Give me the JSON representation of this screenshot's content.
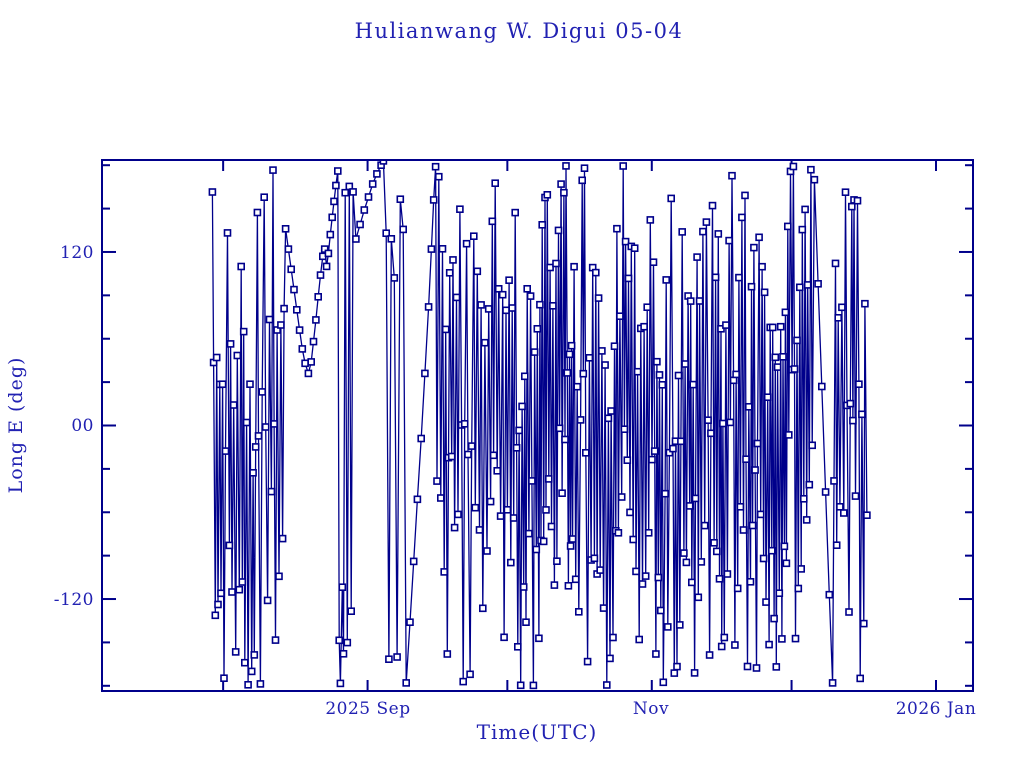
{
  "page": {
    "title": "Hulianwang W. Digui 05-04"
  },
  "chart_data": {
    "type": "scatter-line",
    "title": "Hulianwang W. Digui 05-04",
    "xlabel": "Time(UTC)",
    "ylabel": "Long E (deg)",
    "line_color": "#00008B",
    "text_color": "#2121b2",
    "background": "#ffffff",
    "marker": "open-square",
    "grid": false,
    "legend": "none",
    "wrap_degrees": 360,
    "ylim": [
      -183.6,
      183.6
    ],
    "y_major_ticks": [
      {
        "label": "120",
        "value": 120
      },
      {
        "label": "00",
        "value": 0
      },
      {
        "label": "-120",
        "value": -120
      }
    ],
    "y_minor_step": 30,
    "x_epoch_date": "2025-07-06",
    "xlim_days": [
      0,
      187.2
    ],
    "x_month_tick_days": [
      26,
      57,
      87,
      118,
      148,
      179
    ],
    "x_tick_labels": [
      {
        "label": "2025 Sep",
        "day": 57
      },
      {
        "label": "Nov",
        "day": 118
      },
      {
        "label": "2026 Jan",
        "day": 179
      }
    ],
    "data_span_days": [
      23.7,
      164.3
    ],
    "seed": 7,
    "bands": [
      {
        "mode": "drift",
        "t0": 23.7,
        "t1": 39.2,
        "dt": 0.33,
        "jit": 0.3,
        "dmin": 120,
        "dmax": 245,
        "start_lon": 40
      },
      {
        "mode": "explicit",
        "points": [
          [
            39.4,
            136
          ],
          [
            40.0,
            122
          ],
          [
            40.6,
            108
          ],
          [
            41.2,
            94
          ],
          [
            41.8,
            80
          ],
          [
            42.4,
            66
          ],
          [
            43.0,
            53
          ],
          [
            43.6,
            43
          ],
          [
            44.3,
            36
          ],
          [
            44.9,
            44
          ],
          [
            45.4,
            58
          ],
          [
            45.9,
            73
          ],
          [
            46.4,
            89
          ],
          [
            46.9,
            104
          ],
          [
            47.4,
            117
          ],
          [
            47.8,
            122
          ],
          [
            48.2,
            110
          ],
          [
            48.6,
            119
          ],
          [
            49.0,
            132
          ],
          [
            49.4,
            144
          ],
          [
            49.8,
            155
          ],
          [
            50.2,
            166
          ],
          [
            50.6,
            176
          ]
        ]
      },
      {
        "mode": "confined",
        "t0": 50.9,
        "t1": 54.2,
        "dt": 0.35,
        "jit": 0.25,
        "lo": 150,
        "hi": 262,
        "dmin": 35,
        "dmax": 85
      },
      {
        "mode": "explicit",
        "points": [
          [
            54.5,
            129
          ],
          [
            55.4,
            139
          ],
          [
            56.3,
            149
          ],
          [
            57.2,
            158
          ],
          [
            58.1,
            167
          ],
          [
            59.0,
            174
          ],
          [
            59.9,
            180
          ],
          [
            60.4,
            183
          ]
        ]
      },
      {
        "mode": "confined",
        "t0": 61.0,
        "t1": 65.0,
        "dt": 0.55,
        "jit": 0.25,
        "lo": 62,
        "hi": 200,
        "dmin": 55,
        "dmax": 120
      },
      {
        "mode": "explicit",
        "points": [
          [
            65.3,
            -178
          ],
          [
            66.1,
            -136
          ],
          [
            66.9,
            -94
          ],
          [
            67.7,
            -51
          ],
          [
            68.5,
            -9
          ],
          [
            69.3,
            36
          ],
          [
            70.1,
            82
          ],
          [
            70.7,
            122
          ],
          [
            71.2,
            156
          ],
          [
            71.6,
            179
          ]
        ]
      },
      {
        "mode": "drift",
        "t0": 71.9,
        "t1": 87.0,
        "dt": 0.36,
        "jit": 0.3,
        "dmin": 115,
        "dmax": 235
      },
      {
        "mode": "drift",
        "t0": 87.0,
        "t1": 101.0,
        "dt": 0.29,
        "jit": 0.3,
        "dmin": 135,
        "dmax": 240
      },
      {
        "mode": "drift",
        "t0": 101.0,
        "t1": 116.0,
        "dt": 0.32,
        "jit": 0.3,
        "dmin": 125,
        "dmax": 235
      },
      {
        "mode": "drift",
        "t0": 116.0,
        "t1": 133.0,
        "dt": 0.3,
        "jit": 0.3,
        "dmin": 120,
        "dmax": 230
      },
      {
        "mode": "drift",
        "t0": 133.0,
        "t1": 152.6,
        "dt": 0.28,
        "jit": 0.3,
        "dmin": 135,
        "dmax": 240
      },
      {
        "mode": "explicit",
        "points": [
          [
            152.9,
            170
          ],
          [
            153.7,
            98
          ],
          [
            154.5,
            27
          ],
          [
            155.3,
            -46
          ],
          [
            156.1,
            -117
          ],
          [
            156.8,
            -178
          ]
        ]
      },
      {
        "mode": "drift",
        "t0": 157.1,
        "t1": 164.3,
        "dt": 0.33,
        "jit": 0.3,
        "dmin": 130,
        "dmax": 235
      }
    ]
  }
}
